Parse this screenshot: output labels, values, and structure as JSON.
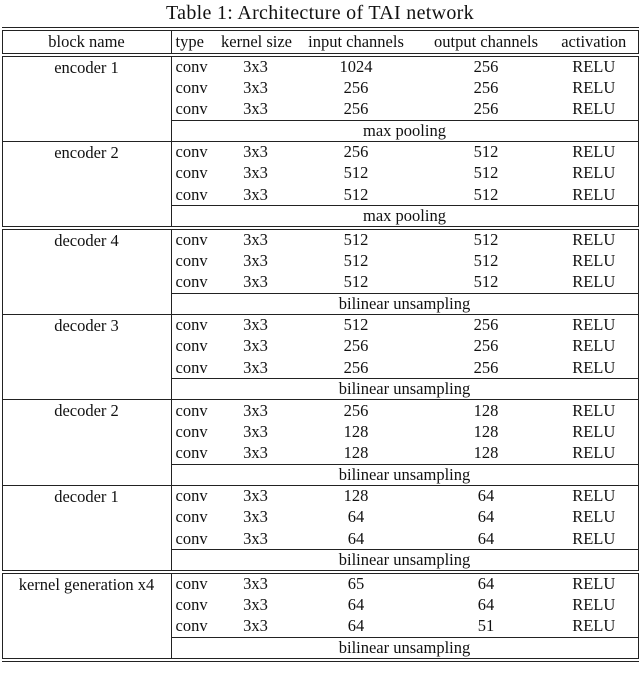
{
  "title": "Table 1: Architecture of TAI network",
  "colors": {
    "text": "#111111",
    "rule": "#222222",
    "background": "#ffffff"
  },
  "table": {
    "columns": [
      "block name",
      "type",
      "kernel size",
      "input channels",
      "output channels",
      "activation"
    ],
    "blocks": [
      {
        "name": "encoder 1",
        "rule_above": "none",
        "rows": [
          [
            "conv",
            "3x3",
            "1024",
            "256",
            "RELU"
          ],
          [
            "conv",
            "3x3",
            "256",
            "256",
            "RELU"
          ],
          [
            "conv",
            "3x3",
            "256",
            "256",
            "RELU"
          ]
        ],
        "pooling": "max pooling"
      },
      {
        "name": "encoder 2",
        "rule_above": "single",
        "rows": [
          [
            "conv",
            "3x3",
            "256",
            "512",
            "RELU"
          ],
          [
            "conv",
            "3x3",
            "512",
            "512",
            "RELU"
          ],
          [
            "conv",
            "3x3",
            "512",
            "512",
            "RELU"
          ]
        ],
        "pooling": "max pooling"
      },
      {
        "name": "decoder 4",
        "rule_above": "double",
        "rows": [
          [
            "conv",
            "3x3",
            "512",
            "512",
            "RELU"
          ],
          [
            "conv",
            "3x3",
            "512",
            "512",
            "RELU"
          ],
          [
            "conv",
            "3x3",
            "512",
            "512",
            "RELU"
          ]
        ],
        "pooling": "bilinear unsampling"
      },
      {
        "name": "decoder 3",
        "rule_above": "single",
        "rows": [
          [
            "conv",
            "3x3",
            "512",
            "256",
            "RELU"
          ],
          [
            "conv",
            "3x3",
            "256",
            "256",
            "RELU"
          ],
          [
            "conv",
            "3x3",
            "256",
            "256",
            "RELU"
          ]
        ],
        "pooling": "bilinear unsampling"
      },
      {
        "name": "decoder 2",
        "rule_above": "single",
        "rows": [
          [
            "conv",
            "3x3",
            "256",
            "128",
            "RELU"
          ],
          [
            "conv",
            "3x3",
            "128",
            "128",
            "RELU"
          ],
          [
            "conv",
            "3x3",
            "128",
            "128",
            "RELU"
          ]
        ],
        "pooling": "bilinear unsampling"
      },
      {
        "name": "decoder 1",
        "rule_above": "single",
        "rows": [
          [
            "conv",
            "3x3",
            "128",
            "64",
            "RELU"
          ],
          [
            "conv",
            "3x3",
            "64",
            "64",
            "RELU"
          ],
          [
            "conv",
            "3x3",
            "64",
            "64",
            "RELU"
          ]
        ],
        "pooling": "bilinear unsampling"
      },
      {
        "name": "kernel generation x4",
        "rule_above": "double",
        "rows": [
          [
            "conv",
            "3x3",
            "65",
            "64",
            "RELU"
          ],
          [
            "conv",
            "3x3",
            "64",
            "64",
            "RELU"
          ],
          [
            "conv",
            "3x3",
            "64",
            "51",
            "RELU"
          ]
        ],
        "pooling": "bilinear unsampling"
      }
    ]
  }
}
